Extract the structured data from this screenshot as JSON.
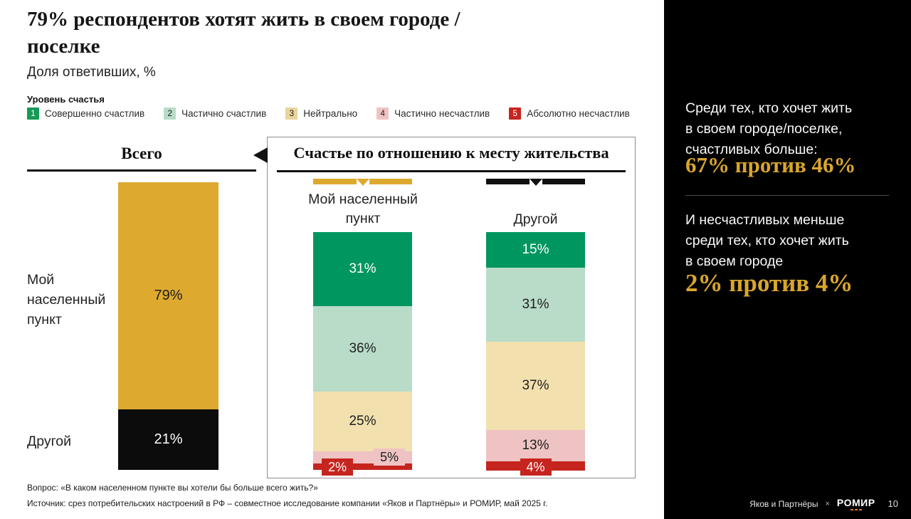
{
  "slide": {
    "title_line1": "79% респондентов хотят жить в своем городе /",
    "title_line2": "поселке",
    "subtitle": "Доля ответивших, %"
  },
  "legend": {
    "title": "Уровень счастья",
    "items": [
      {
        "num": "1",
        "label": "Совершенно счастлив",
        "color": "#169a56"
      },
      {
        "num": "2",
        "label": "Частично счастлив",
        "color": "#b8dcc8"
      },
      {
        "num": "3",
        "label": "Нейтрально",
        "color": "#e9d49c"
      },
      {
        "num": "4",
        "label": "Частично несчастлив",
        "color": "#efc3c3"
      },
      {
        "num": "5",
        "label": "Абсолютно несчастлив",
        "color": "#c6251f"
      }
    ]
  },
  "total_chart": {
    "heading": "Всего",
    "row_labels": [
      "Мой населенный пункт",
      "Другой"
    ]
  },
  "panel": {
    "heading": "Счастье по отношению к месту жительства",
    "col_labels": [
      "Мой населенный пункт",
      "Другой"
    ]
  },
  "chart_data": [
    {
      "type": "bar",
      "subtype": "stacked-vertical",
      "title": "Всего",
      "unit": "%",
      "categories": [
        "Мой населенный пункт",
        "Другой"
      ],
      "values": [
        79,
        21
      ],
      "colors": [
        "#ddaa2f",
        "#0c0c0c"
      ],
      "value_label_colors": [
        "#1d1d1d",
        "#ffffff"
      ]
    },
    {
      "type": "bar",
      "subtype": "stacked-vertical",
      "title": "Счастье по отношению к месту жительства",
      "unit": "%",
      "categories": [
        "Мой населенный пункт",
        "Другой"
      ],
      "series": [
        {
          "name": "Совершенно счастлив",
          "values": [
            31,
            15
          ],
          "color": "#009660",
          "label_color": "#ffffff"
        },
        {
          "name": "Частично счастлив",
          "values": [
            36,
            31
          ],
          "color": "#b8dcc8",
          "label_color": "#1d1d1d"
        },
        {
          "name": "Нейтрально",
          "values": [
            25,
            37
          ],
          "color": "#f2e0ae",
          "label_color": "#1d1d1d"
        },
        {
          "name": "Частично несчастлив",
          "values": [
            5,
            13
          ],
          "color": "#efc3c3",
          "label_color": "#1d1d1d"
        },
        {
          "name": "Абсолютно несчастлив",
          "values": [
            2,
            4
          ],
          "color": "#c6251f",
          "label_color": "#ffffff"
        }
      ]
    }
  ],
  "sidebar": {
    "accent_color": "#d9a62b",
    "block1": {
      "lines": [
        "Среди тех, кто хочет жить",
        "в своем городе/поселке,",
        "счастливых больше:"
      ],
      "stat": "67% против 46%"
    },
    "block2": {
      "lines": [
        "И несчастливых меньше",
        "среди тех, кто хочет жить",
        "в своем городе"
      ],
      "stat": "2% против 4%"
    }
  },
  "footer": {
    "question": "Вопрос: «В каком населенном пункте вы хотели бы больше всего жить?»",
    "source": "Источник: срез потребительских настроений в РФ – совместное исследование компании «Яков и Партнёры» и РОМИР, май 2025 г.",
    "brand_left": "Яков и Партнёры",
    "brand_x": "×",
    "brand_right": "РОМИР",
    "page_number": "10"
  }
}
